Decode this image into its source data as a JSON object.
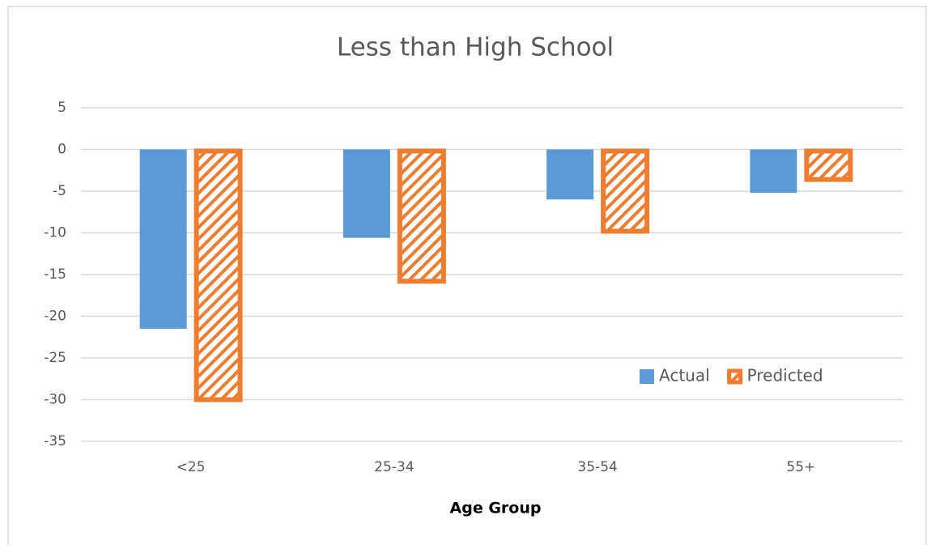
{
  "chart_data": {
    "type": "bar",
    "title": "Less than High School",
    "x_label": "Age Group",
    "categories": [
      "<25",
      "25-34",
      "35-54",
      "55+"
    ],
    "series": [
      {
        "name": "Actual",
        "color": "#5b9bd5",
        "hatch": false,
        "values": [
          -21.5,
          -10.6,
          -6,
          -5.2
        ]
      },
      {
        "name": "Predicted",
        "color": "#ed7d31",
        "hatch": true,
        "values": [
          -30.2,
          -16,
          -10,
          -3.8
        ]
      }
    ],
    "ylim": [
      -35,
      5
    ],
    "yticks": [
      -35,
      -30,
      -25,
      -20,
      -15,
      -10,
      -5,
      0,
      5
    ],
    "grid": true,
    "legend": "lower right"
  }
}
